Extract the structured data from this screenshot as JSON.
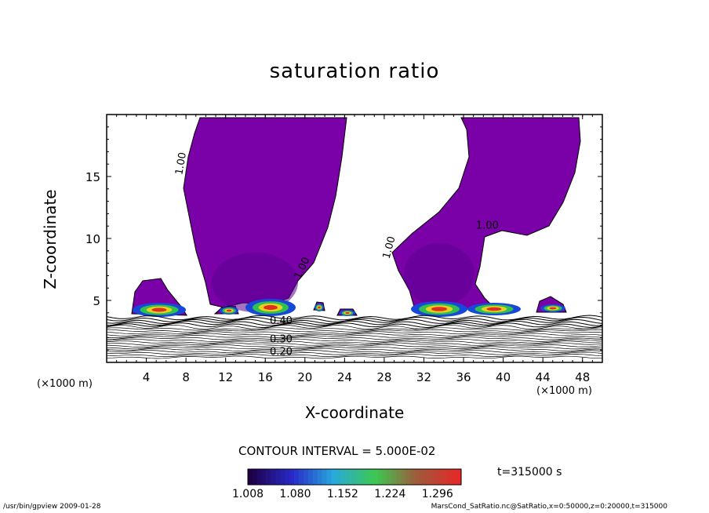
{
  "title": "saturation ratio",
  "contour_interval_text": "CONTOUR INTERVAL = 5.000E-02",
  "time_text": "t=315000 s",
  "footer_left": "/usr/bin/gpview   2009-01-28",
  "footer_right": "MarsCond_SatRatio.nc@SatRatio,x=0:50000,z=0:20000,t=315000",
  "colors": {
    "plume": "#7a00a8",
    "plume_dark": "#5a0090",
    "core_blue": "#1848d8",
    "core_green": "#30c050",
    "core_yellow": "#e8d020",
    "core_red": "#e03020",
    "contour_line": "#000000"
  },
  "chart_data": {
    "type": "contour",
    "title": "saturation ratio",
    "xlabel": "X-coordinate",
    "ylabel": "Z-coordinate",
    "x_unit_label": "(×1000 m)",
    "xlim": [
      0,
      50
    ],
    "ylim": [
      0,
      20
    ],
    "x_ticks": [
      4,
      8,
      12,
      16,
      20,
      24,
      28,
      32,
      36,
      40,
      44,
      48
    ],
    "y_ticks": [
      5,
      10,
      15
    ],
    "contour_labels": [
      {
        "text": "1.00",
        "x": 7.8,
        "z": 16.0,
        "angle": -80
      },
      {
        "text": "1.00",
        "x": 20.0,
        "z": 7.5,
        "angle": -65
      },
      {
        "text": "1.00",
        "x": 28.8,
        "z": 9.2,
        "angle": -75
      },
      {
        "text": "1.00",
        "x": 38.4,
        "z": 10.8,
        "angle": 0
      },
      {
        "text": "0.40",
        "x": 17.6,
        "z": 3.1,
        "angle": 0
      },
      {
        "text": "0.30",
        "x": 17.6,
        "z": 1.6,
        "angle": 0
      },
      {
        "text": "0.20",
        "x": 17.6,
        "z": 0.6,
        "angle": 0
      }
    ],
    "colorbar": {
      "tick_labels": [
        "1.008",
        "1.080",
        "1.152",
        "1.224",
        "1.296"
      ],
      "range": [
        1.008,
        1.332
      ]
    }
  }
}
